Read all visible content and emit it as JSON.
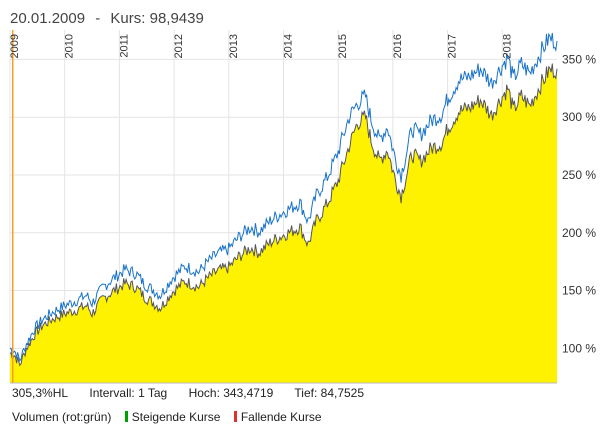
{
  "header": {
    "date": "20.01.2009",
    "separator": "-",
    "kurs_label": "Kurs:",
    "kurs_value": "98,9439"
  },
  "stats": {
    "perf": "305,3%HL",
    "interval": "Intervall: 1 Tag",
    "high": "Hoch: 343,4719",
    "low": "Tief: 84,7525"
  },
  "legend": {
    "volume": "Volumen (rot:grün)",
    "rising": "Steigende Kurse",
    "falling": "Fallende Kurse"
  },
  "colors": {
    "area_fill": "#fff200",
    "line_gray": "#555555",
    "line_blue": "#1a73c9",
    "marker": "#f5a020",
    "rising": "#00a000",
    "falling": "#e03030"
  },
  "chart_data": {
    "type": "area",
    "title": "",
    "xlabel": "",
    "ylabel": "",
    "xlim": [
      2009.0,
      2019.0
    ],
    "ylim": [
      70,
      372
    ],
    "y_ticks": [
      100,
      150,
      200,
      250,
      300,
      350
    ],
    "y_tick_labels": [
      "100 %",
      "150 %",
      "200 %",
      "250 %",
      "300 %",
      "350 %"
    ],
    "x_ticks": [
      2009,
      2010,
      2011,
      2012,
      2013,
      2014,
      2015,
      2016,
      2017,
      2018
    ],
    "x_tick_labels": [
      "2009",
      "2010",
      "2011",
      "2012",
      "2013",
      "2014",
      "2015",
      "2016",
      "2017",
      "2018"
    ],
    "grid": true,
    "y_axis_position": "right",
    "marker_x": 2009.05,
    "series": [
      {
        "style": "area",
        "x": [
          2009.0,
          2009.08,
          2009.18,
          2009.3,
          2009.45,
          2009.6,
          2009.8,
          2010.0,
          2010.2,
          2010.4,
          2010.5,
          2010.7,
          2010.9,
          2011.1,
          2011.3,
          2011.45,
          2011.6,
          2011.75,
          2011.95,
          2012.2,
          2012.45,
          2012.6,
          2012.8,
          2013.0,
          2013.2,
          2013.4,
          2013.55,
          2013.8,
          2014.0,
          2014.3,
          2014.45,
          2014.6,
          2014.8,
          2015.0,
          2015.2,
          2015.35,
          2015.5,
          2015.6,
          2015.75,
          2015.9,
          2016.05,
          2016.15,
          2016.35,
          2016.5,
          2016.7,
          2016.9,
          2017.0,
          2017.2,
          2017.4,
          2017.6,
          2017.8,
          2018.0,
          2018.1,
          2018.2,
          2018.35,
          2018.5,
          2018.7,
          2018.85,
          2019.0
        ],
        "values": [
          96,
          94,
          86,
          100,
          112,
          120,
          126,
          130,
          133,
          137,
          130,
          143,
          150,
          156,
          153,
          145,
          140,
          135,
          148,
          158,
          153,
          160,
          167,
          170,
          180,
          187,
          183,
          193,
          198,
          205,
          190,
          210,
          225,
          245,
          275,
          295,
          300,
          280,
          262,
          272,
          245,
          232,
          268,
          262,
          273,
          278,
          290,
          305,
          308,
          315,
          302,
          318,
          325,
          306,
          318,
          310,
          328,
          340,
          342
        ]
      },
      {
        "style": "line",
        "x": [
          2009.0,
          2009.08,
          2009.18,
          2009.3,
          2009.45,
          2009.6,
          2009.8,
          2010.0,
          2010.2,
          2010.4,
          2010.5,
          2010.7,
          2010.9,
          2011.1,
          2011.3,
          2011.45,
          2011.6,
          2011.75,
          2011.95,
          2012.2,
          2012.45,
          2012.6,
          2012.8,
          2013.0,
          2013.2,
          2013.4,
          2013.55,
          2013.8,
          2014.0,
          2014.3,
          2014.45,
          2014.6,
          2014.8,
          2015.0,
          2015.2,
          2015.35,
          2015.5,
          2015.6,
          2015.75,
          2015.9,
          2016.05,
          2016.15,
          2016.35,
          2016.5,
          2016.7,
          2016.9,
          2017.0,
          2017.2,
          2017.4,
          2017.6,
          2017.8,
          2018.0,
          2018.1,
          2018.2,
          2018.35,
          2018.5,
          2018.7,
          2018.85,
          2019.0
        ],
        "values": [
          100,
          98,
          90,
          104,
          117,
          125,
          132,
          137,
          141,
          146,
          139,
          153,
          161,
          168,
          165,
          156,
          151,
          146,
          160,
          171,
          166,
          174,
          182,
          186,
          197,
          205,
          201,
          212,
          218,
          226,
          210,
          232,
          248,
          270,
          300,
          312,
          318,
          298,
          280,
          292,
          263,
          250,
          290,
          285,
          297,
          303,
          316,
          332,
          335,
          342,
          330,
          345,
          352,
          333,
          346,
          338,
          356,
          368,
          366
        ]
      }
    ]
  }
}
